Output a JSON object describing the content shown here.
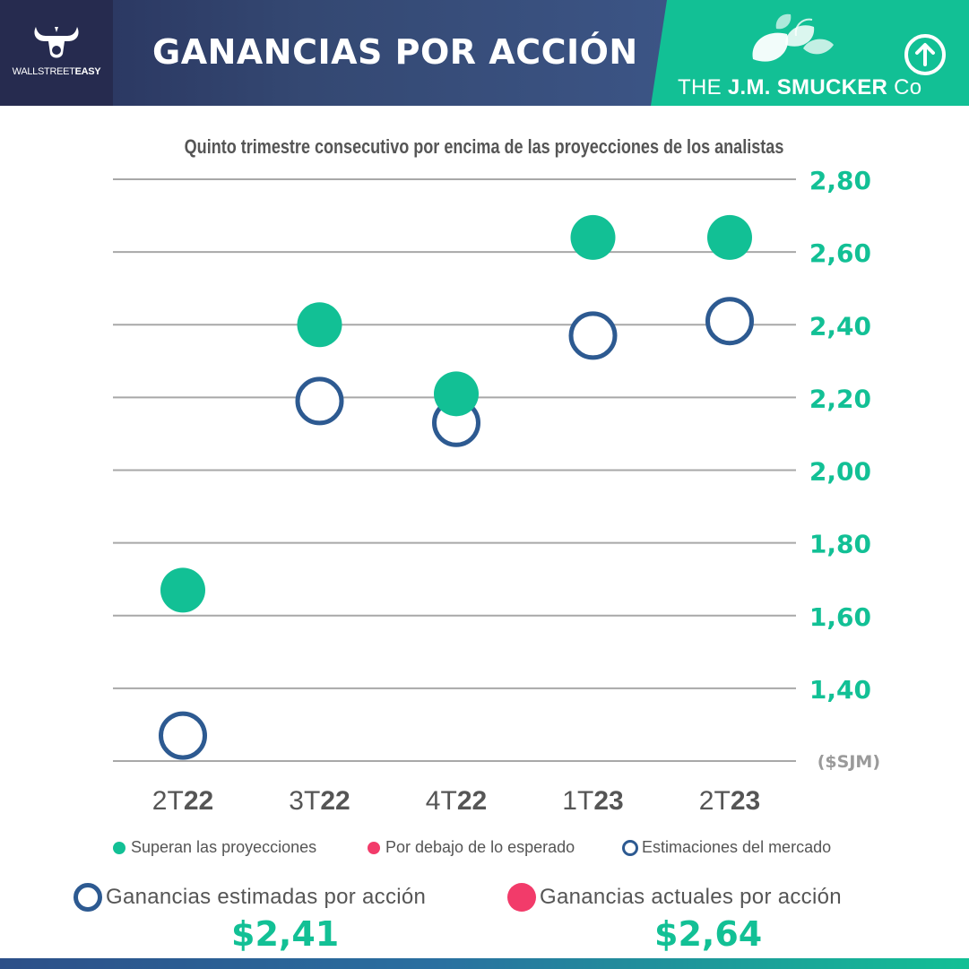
{
  "header": {
    "brand_name_light": "WALLSTREET",
    "brand_name_bold": "EASY",
    "title": "GANANCIAS POR ACCIÓN",
    "company_prefix": "THE",
    "company_name": "J.M. SMUCKER",
    "company_suffix": "Co",
    "icons": [
      "bull-logo-icon",
      "leaves-logo-icon",
      "arrow-up-circle-icon"
    ]
  },
  "colors": {
    "beat": "#12c095",
    "miss": "#f23b6a",
    "estimate": "#2d5a91",
    "header_dark": "#262b4f",
    "header_blue": "#3c5586"
  },
  "chart_data": {
    "type": "scatter",
    "subtitle": "Quinto trimestre consecutivo por encima de las proyecciones de los analistas",
    "categories": [
      {
        "prefix": "2T",
        "bold": "22"
      },
      {
        "prefix": "3T",
        "bold": "22"
      },
      {
        "prefix": "4T",
        "bold": "22"
      },
      {
        "prefix": "1T",
        "bold": "23"
      },
      {
        "prefix": "2T",
        "bold": "23"
      }
    ],
    "series": [
      {
        "name": "Superan las proyecciones",
        "style": "filled",
        "color": "#12c095",
        "values": [
          1.67,
          2.4,
          2.21,
          2.64,
          2.64
        ]
      },
      {
        "name": "Estimaciones del mercado",
        "style": "ring",
        "color": "#2d5a91",
        "values": [
          1.27,
          2.19,
          2.13,
          2.37,
          2.41
        ]
      }
    ],
    "y_ticks": [
      "2,80",
      "2,60",
      "2,40",
      "2,20",
      "2,00",
      "1,80",
      "1,60",
      "1,40"
    ],
    "y_tick_values": [
      2.8,
      2.6,
      2.4,
      2.2,
      2.0,
      1.8,
      1.6,
      1.4
    ],
    "ylim": [
      1.2,
      2.8
    ],
    "ylabel": "($SJM)",
    "grid": true,
    "legend": [
      {
        "label": "Superan las proyecciones",
        "marker": "filled",
        "color": "#12c095"
      },
      {
        "label": "Por debajo de lo esperado",
        "marker": "filled",
        "color": "#f23b6a"
      },
      {
        "label": "Estimaciones del mercado",
        "marker": "ring",
        "color": "#2d5a91"
      }
    ]
  },
  "summary": {
    "estimated_label": "Ganancias estimadas por acción",
    "estimated_value": "$2,41",
    "actual_label": "Ganancias actuales por acción",
    "actual_value": "$2,64"
  }
}
